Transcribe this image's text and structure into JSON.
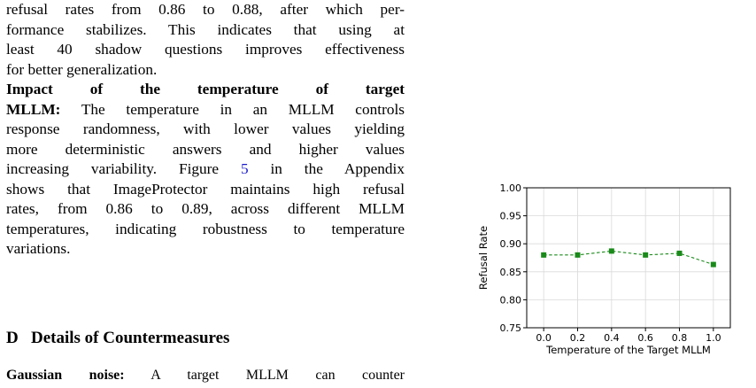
{
  "text": {
    "p1": {
      "l1": "refusal rates from  0.86 to  0.88, after which per-",
      "l2": "formance stabilizes.  This indicates that using at",
      "l3": "least 40 shadow questions improves effectiveness",
      "l4": "for better generalization."
    },
    "p2": {
      "heading_w1": "Impact",
      "heading_w2": "of",
      "heading_w3": "the",
      "heading_w4": "temperature",
      "heading_w5": "of",
      "heading_w6": "target",
      "heading_l2": "MLLM:",
      "l2_rest": "The temperature in an MLLM controls",
      "l3": "response randomness, with lower values yielding",
      "l4": "more deterministic answers and higher values",
      "l5_a": "increasing variability.  Figure ",
      "l5_link": "5",
      "l5_b": " in the Appendix",
      "l6": "shows that ImageProtector maintains high refusal",
      "l7": "rates, from 0.86 to 0.89, across different MLLM",
      "l8": "temperatures, indicating robustness to temperature",
      "l9": "variations."
    },
    "section": {
      "num": "D",
      "title": "Details of Countermeasures"
    },
    "p3": {
      "heading": "Gaussian noise:",
      "rest": "A target MLLM can counter"
    }
  },
  "chart_data": {
    "type": "line",
    "x": [
      0.0,
      0.2,
      0.4,
      0.6,
      0.8,
      1.0
    ],
    "values": [
      0.88,
      0.88,
      0.887,
      0.88,
      0.883,
      0.863
    ],
    "xlabel": "Temperature of the Target MLLM",
    "ylabel": "Refusal Rate",
    "xlim": [
      -0.1,
      1.1
    ],
    "ylim": [
      0.75,
      1.0
    ],
    "xticks": [
      "0.0",
      "0.2",
      "0.4",
      "0.6",
      "0.8",
      "1.0"
    ],
    "yticks": [
      "0.75",
      "0.80",
      "0.85",
      "0.90",
      "0.95",
      "1.00"
    ],
    "grid": true,
    "line_style": "dashed",
    "marker": "square",
    "color": "#1a8a1a"
  }
}
